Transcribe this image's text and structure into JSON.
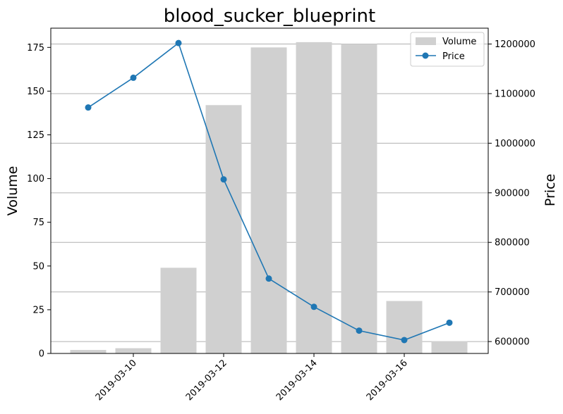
{
  "chart_data": {
    "type": "bar+line",
    "title": "blood_sucker_blueprint",
    "ylabel_left": "Volume",
    "ylabel_right": "Price",
    "x": [
      "2019-03-09",
      "2019-03-10",
      "2019-03-11",
      "2019-03-12",
      "2019-03-13",
      "2019-03-14",
      "2019-03-15",
      "2019-03-16",
      "2019-03-17"
    ],
    "x_tick_labels": [
      "2019-03-10",
      "2019-03-12",
      "2019-03-14",
      "2019-03-16"
    ],
    "x_tick_positions": [
      "2019-03-10",
      "2019-03-12",
      "2019-03-14",
      "2019-03-16"
    ],
    "series": [
      {
        "name": "Volume",
        "kind": "bar",
        "axis": "left",
        "color": "#d0d0d0",
        "values": [
          2,
          3,
          49,
          142,
          175,
          178,
          177,
          30,
          7
        ]
      },
      {
        "name": "Price",
        "kind": "line",
        "axis": "right",
        "color": "#1f77b4",
        "values": [
          1072000,
          1132000,
          1202000,
          927000,
          727000,
          670000,
          622000,
          603000,
          638000
        ]
      }
    ],
    "ylim_left": [
      0,
      186
    ],
    "ylim_right": [
      576000,
      1232000
    ],
    "yticks_left": [
      0,
      25,
      50,
      75,
      100,
      125,
      150,
      175
    ],
    "yticks_right": [
      600000,
      700000,
      800000,
      900000,
      1000000,
      1100000,
      1200000
    ],
    "grid": "horizontal, right axis",
    "legend_position": "top-right"
  }
}
